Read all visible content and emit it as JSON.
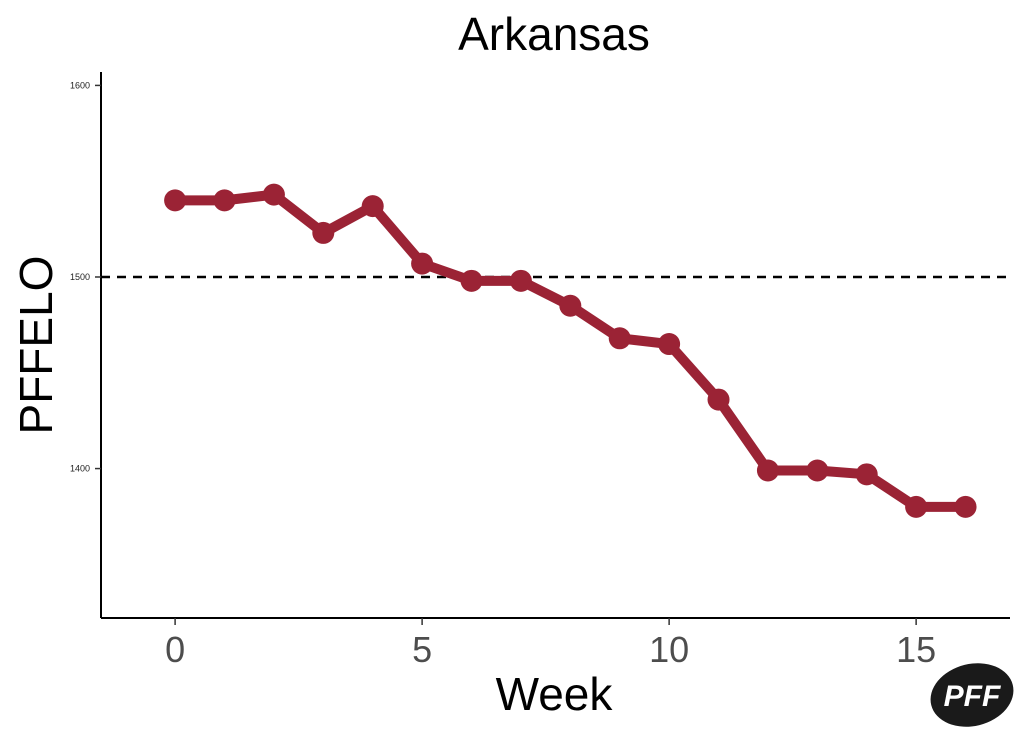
{
  "chart_data": {
    "type": "line",
    "title": "Arkansas",
    "xlabel": "Week",
    "ylabel": "PFFELO",
    "x": [
      0,
      1,
      2,
      3,
      4,
      5,
      6,
      7,
      8,
      9,
      10,
      11,
      12,
      13,
      14,
      15,
      16
    ],
    "series": [
      {
        "values": [
          1540,
          1540,
          1543,
          1523,
          1537,
          1507,
          1498,
          1498,
          1485,
          1468,
          1465,
          1436,
          1399,
          1399,
          1397,
          1380,
          1380
        ]
      }
    ],
    "xticks": [
      "0",
      "5",
      "10",
      "15"
    ],
    "xtick_values": [
      0,
      5,
      10,
      15
    ],
    "yticks": [
      "1400",
      "1500",
      "1600"
    ],
    "ytick_values": [
      1400,
      1500,
      1600
    ],
    "xlim": [
      -1.5,
      16.9
    ],
    "ylim": [
      1322,
      1607
    ],
    "reference_line": {
      "y": 1500,
      "style": "dashed",
      "color": "#000000"
    },
    "line_color": "#9b2335",
    "grid": false
  },
  "logo": {
    "text": "PFF",
    "color": "#1a1a1a"
  }
}
